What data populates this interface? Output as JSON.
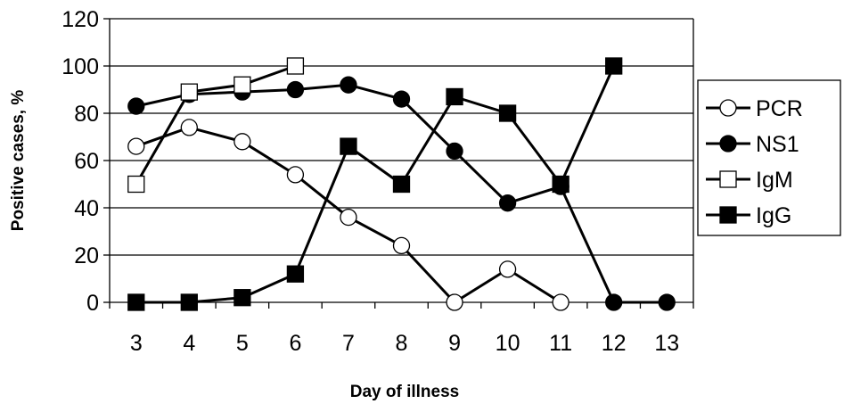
{
  "chart_data": {
    "type": "line",
    "title": "",
    "xlabel": "Day of illness",
    "ylabel": "Positive cases, %",
    "categories": [
      "3",
      "4",
      "5",
      "6",
      "7",
      "8",
      "9",
      "10",
      "11",
      "12",
      "13"
    ],
    "ylim": [
      0,
      120
    ],
    "yticks": [
      "0",
      "20",
      "40",
      "60",
      "80",
      "100",
      "120"
    ],
    "grid": true,
    "legend_position": "right",
    "series": [
      {
        "name": "PCR",
        "marker": "circle",
        "filled": false,
        "x": [
          3,
          4,
          5,
          6,
          7,
          8,
          9,
          10,
          11
        ],
        "values": [
          66,
          74,
          68,
          54,
          36,
          24,
          0,
          14,
          0
        ]
      },
      {
        "name": "NS1",
        "marker": "circle",
        "filled": true,
        "x": [
          3,
          4,
          5,
          6,
          7,
          8,
          9,
          10,
          11,
          12,
          13
        ],
        "values": [
          83,
          88,
          89,
          90,
          92,
          86,
          64,
          42,
          49,
          0,
          0
        ]
      },
      {
        "name": "IgM",
        "marker": "square",
        "filled": false,
        "x": [
          3,
          4,
          5,
          6
        ],
        "values": [
          50,
          89,
          92,
          100
        ]
      },
      {
        "name": "IgG",
        "marker": "square",
        "filled": true,
        "x": [
          3,
          4,
          5,
          6,
          7,
          8,
          9,
          10,
          11,
          12
        ],
        "values": [
          0,
          0,
          2,
          12,
          66,
          50,
          87,
          80,
          50,
          100
        ]
      }
    ],
    "colors": {
      "line": "#000000",
      "grid": "#000000",
      "background": "#ffffff"
    }
  }
}
